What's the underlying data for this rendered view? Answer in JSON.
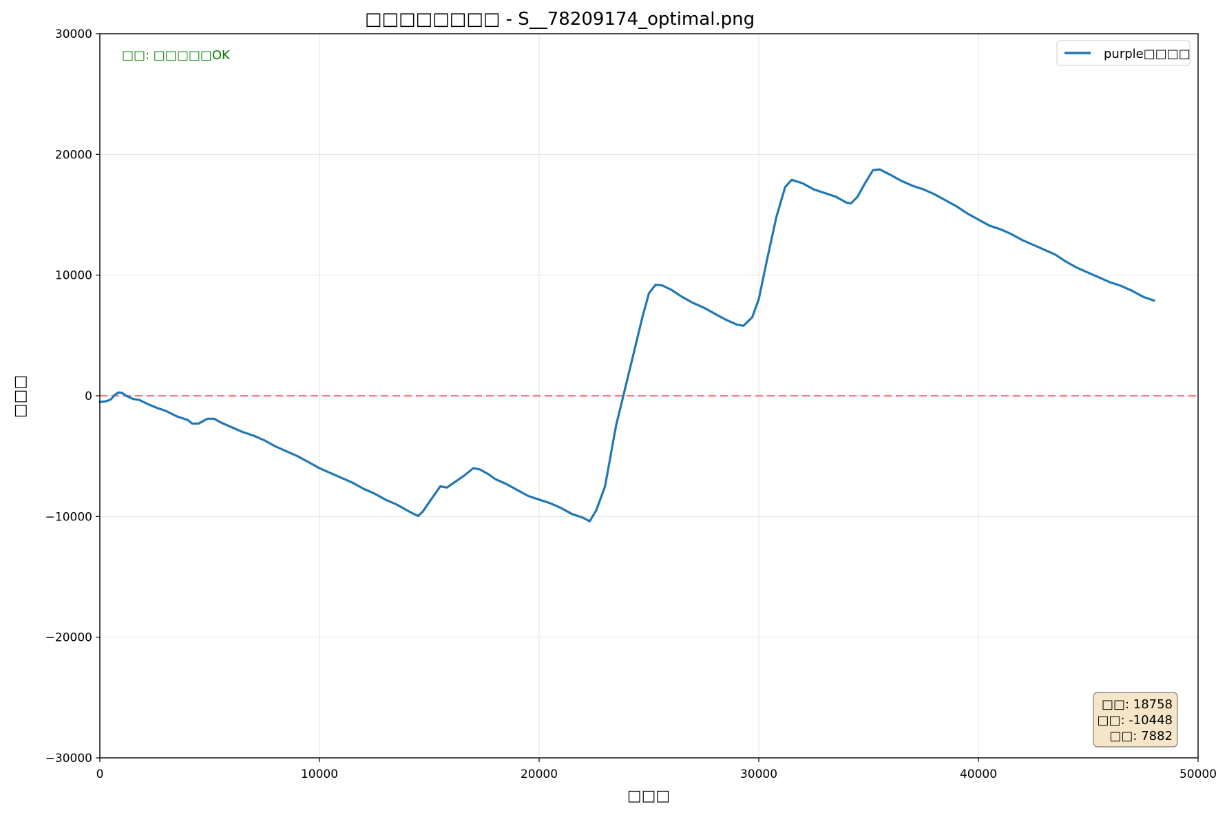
{
  "chart_data": {
    "type": "line",
    "title": "□□□□□□□□ - S__78209174_optimal.png",
    "xlabel": "□□□",
    "ylabel": "□□□",
    "xlim": [
      0,
      50000
    ],
    "ylim": [
      -30000,
      30000
    ],
    "xticks": [
      0,
      10000,
      20000,
      30000,
      40000,
      50000
    ],
    "yticks": [
      -30000,
      -20000,
      -10000,
      0,
      10000,
      20000,
      30000
    ],
    "xtick_labels": [
      "0",
      "10000",
      "20000",
      "30000",
      "40000",
      "50000"
    ],
    "ytick_labels": [
      "−30000",
      "−20000",
      "−10000",
      "0",
      "10000",
      "20000",
      "30000"
    ],
    "grid": true,
    "legend_position": "top-right",
    "zero_line": {
      "y": 0,
      "color": "#f07f7f",
      "style": "dashed"
    },
    "status_text": "□□: □□□□□OK",
    "status_color": "#008000",
    "stats_lines": [
      "□□: 18758",
      "□□: -10448",
      "□□: 7882"
    ],
    "series": [
      {
        "name": "purple□□□□",
        "color": "#1f77b4",
        "points": [
          [
            0,
            -500
          ],
          [
            300,
            -450
          ],
          [
            500,
            -300
          ],
          [
            700,
            100
          ],
          [
            850,
            280
          ],
          [
            1000,
            250
          ],
          [
            1200,
            0
          ],
          [
            1500,
            -250
          ],
          [
            1800,
            -350
          ],
          [
            2200,
            -700
          ],
          [
            2600,
            -1000
          ],
          [
            3000,
            -1250
          ],
          [
            3500,
            -1700
          ],
          [
            4000,
            -2000
          ],
          [
            4200,
            -2300
          ],
          [
            4500,
            -2300
          ],
          [
            4700,
            -2100
          ],
          [
            4900,
            -1900
          ],
          [
            5200,
            -1900
          ],
          [
            5500,
            -2200
          ],
          [
            6000,
            -2600
          ],
          [
            6500,
            -3000
          ],
          [
            7000,
            -3300
          ],
          [
            7500,
            -3700
          ],
          [
            8000,
            -4200
          ],
          [
            8500,
            -4600
          ],
          [
            9000,
            -5000
          ],
          [
            9500,
            -5500
          ],
          [
            10000,
            -6000
          ],
          [
            10500,
            -6400
          ],
          [
            11000,
            -6800
          ],
          [
            11500,
            -7200
          ],
          [
            12000,
            -7700
          ],
          [
            12500,
            -8100
          ],
          [
            13000,
            -8600
          ],
          [
            13500,
            -9000
          ],
          [
            14000,
            -9500
          ],
          [
            14300,
            -9800
          ],
          [
            14500,
            -9950
          ],
          [
            14700,
            -9600
          ],
          [
            15000,
            -8800
          ],
          [
            15500,
            -7500
          ],
          [
            15800,
            -7600
          ],
          [
            16200,
            -7100
          ],
          [
            16600,
            -6600
          ],
          [
            17000,
            -6000
          ],
          [
            17300,
            -6100
          ],
          [
            17700,
            -6500
          ],
          [
            18000,
            -6900
          ],
          [
            18500,
            -7300
          ],
          [
            19000,
            -7800
          ],
          [
            19500,
            -8300
          ],
          [
            20000,
            -8600
          ],
          [
            20500,
            -8900
          ],
          [
            21000,
            -9300
          ],
          [
            21500,
            -9800
          ],
          [
            22000,
            -10100
          ],
          [
            22300,
            -10400
          ],
          [
            22600,
            -9500
          ],
          [
            23000,
            -7500
          ],
          [
            23200,
            -5500
          ],
          [
            23500,
            -2500
          ],
          [
            23900,
            500
          ],
          [
            24300,
            3500
          ],
          [
            24700,
            6500
          ],
          [
            25000,
            8500
          ],
          [
            25300,
            9200
          ],
          [
            25600,
            9150
          ],
          [
            26000,
            8800
          ],
          [
            26500,
            8200
          ],
          [
            27000,
            7700
          ],
          [
            27500,
            7300
          ],
          [
            28000,
            6800
          ],
          [
            28500,
            6300
          ],
          [
            29000,
            5900
          ],
          [
            29300,
            5800
          ],
          [
            29700,
            6500
          ],
          [
            30000,
            8000
          ],
          [
            30400,
            11500
          ],
          [
            30800,
            14800
          ],
          [
            31200,
            17300
          ],
          [
            31500,
            17900
          ],
          [
            32000,
            17600
          ],
          [
            32500,
            17100
          ],
          [
            33000,
            16800
          ],
          [
            33500,
            16500
          ],
          [
            34000,
            16000
          ],
          [
            34200,
            15950
          ],
          [
            34500,
            16500
          ],
          [
            34800,
            17500
          ],
          [
            35200,
            18700
          ],
          [
            35500,
            18758
          ],
          [
            36000,
            18300
          ],
          [
            36500,
            17800
          ],
          [
            37000,
            17400
          ],
          [
            37500,
            17100
          ],
          [
            38000,
            16700
          ],
          [
            38500,
            16200
          ],
          [
            39000,
            15700
          ],
          [
            39500,
            15100
          ],
          [
            40000,
            14600
          ],
          [
            40500,
            14100
          ],
          [
            41000,
            13800
          ],
          [
            41500,
            13400
          ],
          [
            42000,
            12900
          ],
          [
            42500,
            12500
          ],
          [
            43000,
            12100
          ],
          [
            43500,
            11700
          ],
          [
            44000,
            11100
          ],
          [
            44500,
            10600
          ],
          [
            45000,
            10200
          ],
          [
            45500,
            9800
          ],
          [
            46000,
            9400
          ],
          [
            46500,
            9100
          ],
          [
            47000,
            8700
          ],
          [
            47500,
            8200
          ],
          [
            48000,
            7882
          ]
        ]
      }
    ]
  }
}
